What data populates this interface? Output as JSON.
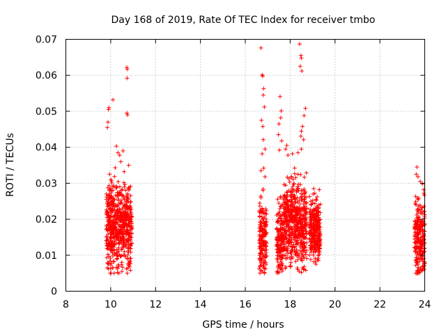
{
  "chart_data": {
    "type": "scatter",
    "title": "Day 168 of 2019, Rate Of TEC Index for receiver tmbo",
    "xlabel": "GPS time / hours",
    "ylabel": "ROTI / TECUs",
    "xlim": [
      8,
      24
    ],
    "ylim": [
      0,
      0.07
    ],
    "x_ticks": [
      "8",
      "10",
      "12",
      "14",
      "16",
      "18",
      "20",
      "22",
      "24"
    ],
    "y_ticks": [
      "0",
      "0.01",
      "0.02",
      "0.03",
      "0.04",
      "0.05",
      "0.06",
      "0.07"
    ],
    "grid": true,
    "marker": "plus",
    "color": "#ff0000",
    "series": [
      {
        "points": [
          [
            9.85,
            0.0455
          ],
          [
            9.88,
            0.047
          ],
          [
            9.9,
            0.0505
          ],
          [
            9.92,
            0.051
          ],
          [
            10.1,
            0.0532
          ],
          [
            10.25,
            0.0403
          ],
          [
            10.32,
            0.0385
          ],
          [
            10.4,
            0.0378
          ],
          [
            10.45,
            0.036
          ],
          [
            10.55,
            0.039
          ],
          [
            10.72,
            0.0622
          ],
          [
            10.74,
            0.0617
          ],
          [
            10.73,
            0.0592
          ],
          [
            10.72,
            0.0495
          ],
          [
            10.75,
            0.049
          ],
          [
            10.8,
            0.035
          ],
          [
            10.6,
            0.0332
          ],
          [
            10.2,
            0.0343
          ],
          [
            9.95,
            0.0325
          ],
          [
            10.05,
            0.0301
          ],
          [
            9.85,
            0.0065
          ],
          [
            9.9,
            0.0062
          ],
          [
            10.1,
            0.0065
          ],
          [
            10.3,
            0.0052
          ],
          [
            10.5,
            0.0055
          ],
          [
            10.7,
            0.0062
          ],
          [
            10.88,
            0.0058
          ],
          [
            10.8,
            0.0072
          ],
          [
            16.7,
            0.0676
          ],
          [
            16.75,
            0.0601
          ],
          [
            16.78,
            0.0598
          ],
          [
            16.82,
            0.0563
          ],
          [
            16.8,
            0.0545
          ],
          [
            16.85,
            0.0512
          ],
          [
            16.72,
            0.0475
          ],
          [
            16.78,
            0.0458
          ],
          [
            16.8,
            0.0421
          ],
          [
            16.88,
            0.0395
          ],
          [
            16.75,
            0.0382
          ],
          [
            16.82,
            0.0342
          ],
          [
            16.7,
            0.0335
          ],
          [
            16.88,
            0.0318
          ],
          [
            16.7,
            0.0058
          ],
          [
            16.75,
            0.0055
          ],
          [
            16.85,
            0.0052
          ],
          [
            16.9,
            0.0062
          ],
          [
            17.45,
            0.0055
          ],
          [
            17.5,
            0.0052
          ],
          [
            17.55,
            0.0062
          ],
          [
            17.52,
            0.0392
          ],
          [
            17.55,
            0.0541
          ],
          [
            17.6,
            0.0501
          ],
          [
            17.58,
            0.0482
          ],
          [
            17.5,
            0.0465
          ],
          [
            17.48,
            0.0435
          ],
          [
            17.62,
            0.0418
          ],
          [
            17.85,
            0.0405
          ],
          [
            17.8,
            0.0395
          ],
          [
            17.9,
            0.0378
          ],
          [
            18.42,
            0.0687
          ],
          [
            18.48,
            0.0655
          ],
          [
            18.5,
            0.0648
          ],
          [
            18.45,
            0.0625
          ],
          [
            18.52,
            0.0612
          ],
          [
            18.55,
            0.0458
          ],
          [
            18.5,
            0.0445
          ],
          [
            18.48,
            0.0431
          ],
          [
            18.6,
            0.0421
          ],
          [
            18.68,
            0.0508
          ],
          [
            18.62,
            0.0488
          ],
          [
            18.5,
            0.0395
          ],
          [
            18.35,
            0.0385
          ],
          [
            18.1,
            0.0382
          ],
          [
            18.2,
            0.0342
          ],
          [
            18.4,
            0.0055
          ],
          [
            18.5,
            0.0052
          ],
          [
            18.6,
            0.0062
          ],
          [
            18.7,
            0.0058
          ],
          [
            18.55,
            0.0065
          ],
          [
            19.05,
            0.0285
          ],
          [
            19.1,
            0.0272
          ],
          [
            19.15,
            0.0255
          ],
          [
            19.2,
            0.0262
          ],
          [
            19.3,
            0.0282
          ],
          [
            19.05,
            0.0082
          ],
          [
            19.15,
            0.0075
          ],
          [
            19.25,
            0.0092
          ],
          [
            19.3,
            0.0102
          ],
          [
            23.65,
            0.0345
          ],
          [
            23.62,
            0.0325
          ],
          [
            23.7,
            0.0318
          ],
          [
            23.8,
            0.0305
          ],
          [
            23.9,
            0.0298
          ],
          [
            23.95,
            0.0282
          ],
          [
            23.68,
            0.0055
          ],
          [
            23.75,
            0.0052
          ],
          [
            23.85,
            0.0058
          ],
          [
            23.92,
            0.0062
          ],
          [
            23.6,
            0.0072
          ],
          [
            23.98,
            0.0072
          ]
        ],
        "dense_regions": [
          {
            "x": [
              9.8,
              10.95
            ],
            "y": [
              0.005,
              0.035
            ],
            "mean": 0.018
          },
          {
            "x": [
              16.62,
              16.95
            ],
            "y": [
              0.005,
              0.033
            ],
            "mean": 0.015
          },
          {
            "x": [
              17.4,
              17.68
            ],
            "y": [
              0.005,
              0.032
            ],
            "mean": 0.015
          },
          {
            "x": [
              17.7,
              18.75
            ],
            "y": [
              0.006,
              0.037
            ],
            "mean": 0.019
          },
          {
            "x": [
              18.85,
              19.35
            ],
            "y": [
              0.008,
              0.029
            ],
            "mean": 0.017
          },
          {
            "x": [
              23.55,
              24.0
            ],
            "y": [
              0.005,
              0.032
            ],
            "mean": 0.015
          }
        ]
      }
    ]
  }
}
